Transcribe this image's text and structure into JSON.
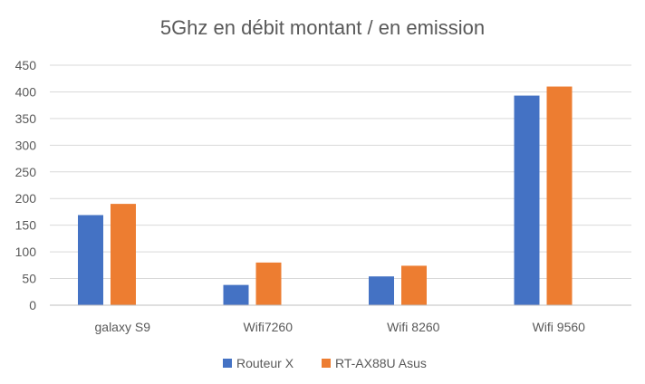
{
  "chart_data": {
    "type": "bar",
    "title": "5Ghz en débit montant / en emission",
    "categories": [
      "galaxy S9",
      "Wifi7260",
      "Wifi 8260",
      "Wifi 9560"
    ],
    "series": [
      {
        "name": "Routeur X",
        "color": "#4472C4",
        "values": [
          169,
          38,
          54,
          393
        ]
      },
      {
        "name": "RT-AX88U Asus",
        "color": "#ED7D31",
        "values": [
          190,
          80,
          74,
          410
        ]
      }
    ],
    "xlabel": "",
    "ylabel": "",
    "ylim": [
      0,
      450
    ],
    "yticks": [
      0,
      50,
      100,
      150,
      200,
      250,
      300,
      350,
      400,
      450
    ],
    "grid": true,
    "legend_position": "bottom"
  }
}
